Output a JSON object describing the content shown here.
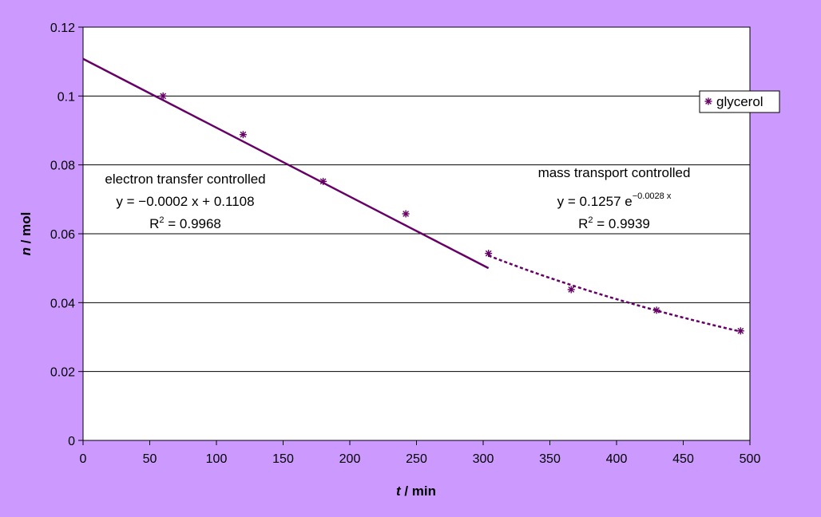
{
  "chart_data": {
    "type": "scatter",
    "xlabel": {
      "var": "t",
      "unit": " / min"
    },
    "ylabel": {
      "var": "n",
      "unit": " / mol"
    },
    "xlim": [
      0,
      500
    ],
    "ylim": [
      0,
      0.12
    ],
    "xticks": [
      0,
      50,
      100,
      150,
      200,
      250,
      300,
      350,
      400,
      450,
      500
    ],
    "yticks": [
      0,
      0.02,
      0.04,
      0.06,
      0.08,
      0.1,
      0.12
    ],
    "grid": "horizontal",
    "legend": {
      "position": "right",
      "entries": [
        "glycerol"
      ]
    },
    "series": [
      {
        "name": "glycerol",
        "marker": "asterisk",
        "color": "#660066",
        "x": [
          60,
          120,
          180,
          242,
          304,
          366,
          430,
          493
        ],
        "y": [
          0.1,
          0.0888,
          0.0752,
          0.0658,
          0.0543,
          0.0438,
          0.0378,
          0.0318
        ]
      }
    ],
    "trendlines": [
      {
        "kind": "linear",
        "slope": -0.0002,
        "intercept": 0.1108,
        "x_range": [
          0,
          304
        ],
        "style": "solid",
        "color": "#660066"
      },
      {
        "kind": "exponential",
        "a": 0.1257,
        "b": -0.0028,
        "x_range": [
          304,
          493
        ],
        "style": "dashed",
        "color": "#660066"
      }
    ],
    "annotations": [
      {
        "id": "etc",
        "title": "electron transfer controlled",
        "equation": "y = −0.0002 x + 0.1108",
        "r2_prefix": "R",
        "r2_sup": "2",
        "r2_value": " = 0.9968"
      },
      {
        "id": "mtc",
        "title": "mass transport controlled",
        "equation_base": "y = 0.1257 e",
        "equation_exp": "−0.0028 x",
        "r2_prefix": "R",
        "r2_sup": "2",
        "r2_value": " = 0.9939"
      }
    ]
  },
  "colors": {
    "background": "#cc99ff",
    "plot_area": "#ffffff",
    "series": "#660066",
    "grid": "#000000"
  }
}
